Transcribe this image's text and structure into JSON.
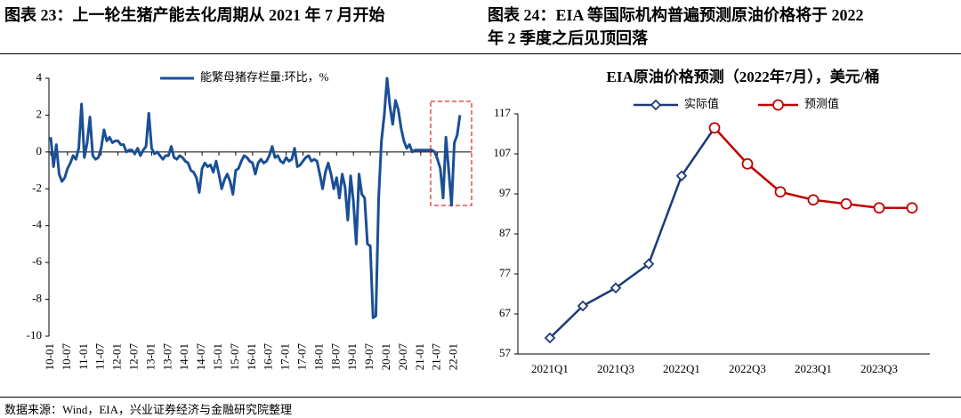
{
  "chart_data": [
    {
      "type": "line",
      "caption": [
        "图表 23：上一轮生猪产能去化周期从 2021 年 7 月开始"
      ],
      "categories": [
        "10-01",
        null,
        null,
        null,
        null,
        null,
        "10-07",
        null,
        null,
        null,
        null,
        null,
        "11-01",
        null,
        null,
        null,
        null,
        null,
        "11-07",
        null,
        null,
        null,
        null,
        null,
        "12-01",
        null,
        null,
        null,
        null,
        null,
        "12-07",
        null,
        null,
        null,
        null,
        null,
        "13-01",
        null,
        null,
        null,
        null,
        null,
        "13-07",
        null,
        null,
        null,
        null,
        null,
        "14-01",
        null,
        null,
        null,
        null,
        null,
        "14-07",
        null,
        null,
        null,
        null,
        null,
        "15-01",
        null,
        null,
        null,
        null,
        null,
        "15-07",
        null,
        null,
        null,
        null,
        null,
        "16-01",
        null,
        null,
        null,
        null,
        null,
        "16-07",
        null,
        null,
        null,
        null,
        null,
        "17-01",
        null,
        null,
        null,
        null,
        null,
        "17-07",
        null,
        null,
        null,
        null,
        null,
        "18-01",
        null,
        null,
        null,
        null,
        null,
        "18-07",
        null,
        null,
        null,
        null,
        null,
        "19-01",
        null,
        null,
        null,
        null,
        null,
        "19-07",
        null,
        null,
        null,
        null,
        null,
        "20-01",
        null,
        null,
        null,
        null,
        null,
        "20-07",
        null,
        null,
        null,
        null,
        null,
        "21-01",
        null,
        null,
        null,
        null,
        null,
        "21-07",
        null,
        null,
        null,
        null,
        null,
        "22-01",
        null,
        null
      ],
      "series": [
        {
          "name": "能繁母猪存栏量:环比，%",
          "color": "#1a4f96",
          "values": [
            0.8,
            -0.8,
            0.4,
            -1.2,
            -1.6,
            -1.4,
            -0.9,
            -0.6,
            -0.2,
            -0.4,
            0.2,
            2.6,
            -0.3,
            0.5,
            1.9,
            -0.2,
            -0.4,
            -0.3,
            0.2,
            1.2,
            0.6,
            0.8,
            0.5,
            0.6,
            0.6,
            0.4,
            0.4,
            0.0,
            0.1,
            0.1,
            -0.1,
            0.2,
            -0.2,
            0.1,
            0.3,
            2.1,
            0.2,
            -0.1,
            0.0,
            -0.2,
            -0.4,
            -0.2,
            -0.2,
            0.3,
            -0.3,
            -0.4,
            -0.2,
            -0.3,
            -0.5,
            -0.6,
            -1.0,
            -1.1,
            -1.4,
            -2.2,
            -0.9,
            -0.6,
            -0.8,
            -0.7,
            -1.1,
            -0.5,
            -1.2,
            -2.0,
            -1.5,
            -1.2,
            -1.6,
            -2.3,
            -1.0,
            -0.9,
            -0.5,
            -0.2,
            -0.3,
            -0.5,
            -0.6,
            -1.2,
            -0.6,
            -0.4,
            -0.6,
            -0.5,
            -0.2,
            0.3,
            -0.3,
            -0.2,
            -0.5,
            -0.6,
            -0.3,
            -0.5,
            -0.4,
            0.2,
            -0.8,
            -0.7,
            -0.5,
            -0.3,
            -0.2,
            -0.5,
            -0.4,
            -0.5,
            -1.2,
            -2.0,
            -1.1,
            -0.6,
            -1.2,
            -2.0,
            -1.4,
            -2.5,
            -1.2,
            -1.9,
            -3.7,
            -1.3,
            -2.7,
            -5.0,
            -1.2,
            -2.3,
            -2.5,
            -5.0,
            -5.1,
            -9.0,
            -8.9,
            -2.5,
            0.6,
            2.0,
            4.0,
            2.5,
            1.5,
            2.8,
            2.3,
            1.3,
            0.6,
            0.2,
            0.4,
            0.0,
            0.1,
            0.1,
            0.1,
            0.1,
            0.1,
            0.1,
            0.1,
            0.0,
            -0.4,
            -0.9,
            -2.5,
            0.8,
            -1.0,
            -2.9,
            0.5,
            0.9,
            2.0
          ]
        }
      ],
      "ylim": [
        -10,
        4
      ],
      "yticks": [
        4,
        2,
        0,
        -2,
        -4,
        -6,
        -8,
        -10
      ]
    },
    {
      "type": "line",
      "caption": [
        "图表 24：EIA 等国际机构普遍预测原油价格将于 2022",
        "年 2 季度之后见顶回落"
      ],
      "title": "EIA原油价格预测（2022年7月），美元/桶",
      "categories": [
        "2021Q1",
        null,
        "2021Q3",
        null,
        "2022Q1",
        null,
        "2022Q3",
        null,
        "2023Q1",
        null,
        "2023Q3",
        null
      ],
      "series": [
        {
          "name": "实际值",
          "color": "#1c3a7a",
          "marker": "diamond",
          "values": [
            61,
            69,
            73.5,
            79.5,
            101.5,
            113.5,
            null,
            null,
            null,
            null,
            null,
            null
          ]
        },
        {
          "name": "预测值",
          "color": "#c00000",
          "marker": "circle",
          "values": [
            null,
            null,
            null,
            null,
            null,
            113.5,
            104.5,
            97.5,
            95.5,
            94.5,
            93.5,
            93.5
          ]
        }
      ],
      "ylim": [
        57,
        117
      ],
      "yticks": [
        117,
        107,
        97,
        87,
        77,
        67,
        57
      ]
    }
  ],
  "source": "数据来源：Wind，EIA，兴业证券经济与金融研究院整理"
}
